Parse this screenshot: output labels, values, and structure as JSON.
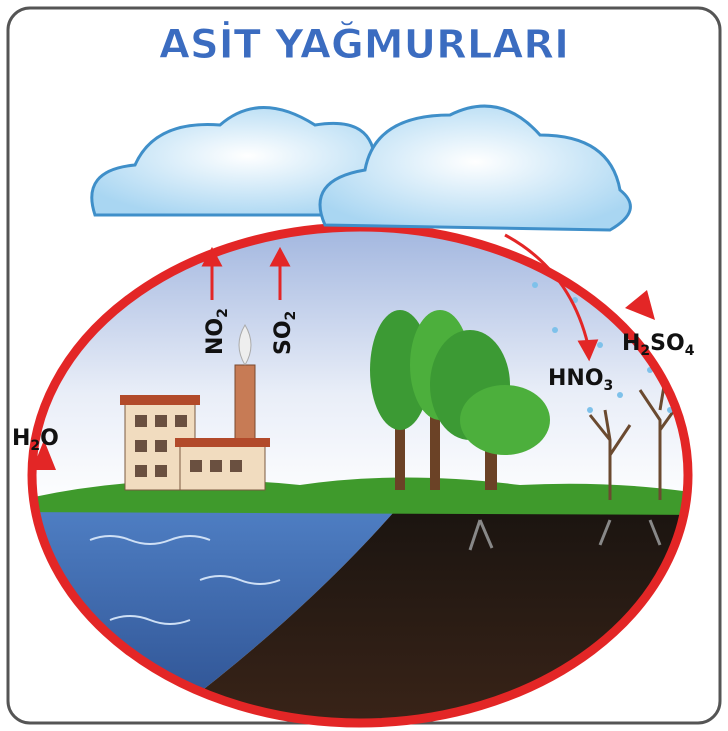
{
  "title": "ASİT YAĞMURLARI",
  "labels": [
    {
      "parts": [
        "NO",
        "2"
      ]
    },
    {
      "parts": [
        "SO",
        "2"
      ]
    },
    {
      "parts": [
        "H",
        "2",
        "SO",
        "4"
      ]
    },
    {
      "parts": [
        "HNO",
        "3"
      ]
    },
    {
      "parts": [
        "H",
        "2",
        "O"
      ]
    }
  ]
}
